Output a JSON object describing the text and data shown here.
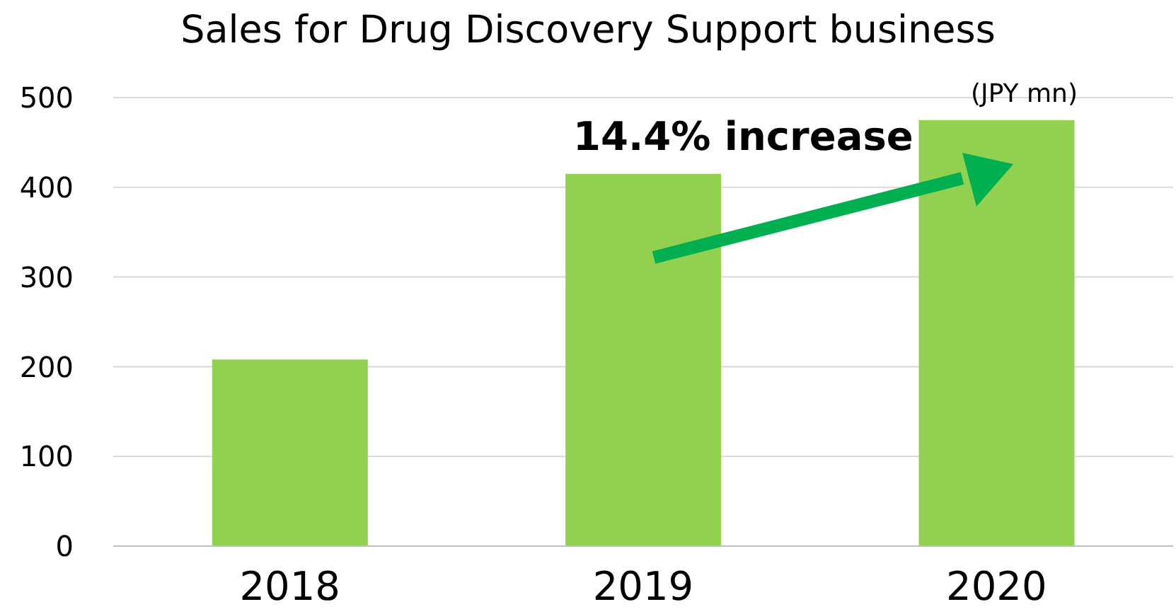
{
  "chart_data": {
    "type": "bar",
    "title": "Sales for Drug Discovery Support business",
    "categories": [
      "2018",
      "2019",
      "2020"
    ],
    "values": [
      208,
      415,
      475
    ],
    "color": "#92d050",
    "ylim": [
      0,
      500
    ],
    "yticks": [
      0,
      100,
      200,
      300,
      400,
      500
    ],
    "grid": "y",
    "annotations": [
      "14.4% increase",
      "(JPY mn)"
    ]
  }
}
